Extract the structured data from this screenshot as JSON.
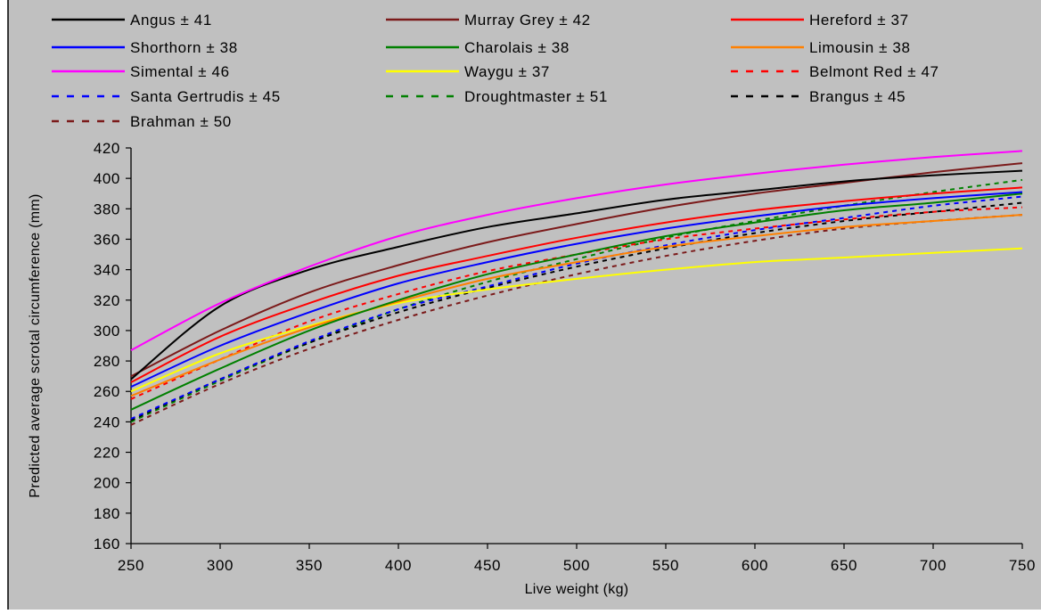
{
  "chart_data": {
    "type": "line",
    "title": "",
    "xlabel": "Live weight (kg)",
    "ylabel": "Predicted average scrotal circumference (mm)",
    "xlim": [
      250,
      750
    ],
    "ylim": [
      160,
      420
    ],
    "xticks": [
      250,
      300,
      350,
      400,
      450,
      500,
      550,
      600,
      650,
      700,
      750
    ],
    "yticks": [
      160,
      180,
      200,
      220,
      240,
      260,
      280,
      300,
      320,
      340,
      360,
      380,
      400,
      420
    ],
    "grid": false,
    "legend_position": "top",
    "x": [
      250,
      300,
      350,
      400,
      450,
      500,
      550,
      600,
      650,
      700,
      750
    ],
    "series": [
      {
        "name": "Angus ± 41",
        "color": "#000000",
        "dash": false,
        "values": [
          268,
          316,
          340,
          355,
          368,
          377,
          386,
          392,
          398,
          402,
          405
        ]
      },
      {
        "name": "Murray Grey ± 42",
        "color": "#7b1a1a",
        "dash": false,
        "values": [
          270,
          300,
          325,
          343,
          358,
          370,
          381,
          390,
          397,
          404,
          410
        ]
      },
      {
        "name": "Hereford ± 37",
        "color": "#ff0000",
        "dash": false,
        "values": [
          266,
          296,
          318,
          336,
          349,
          361,
          371,
          379,
          385,
          390,
          394
        ]
      },
      {
        "name": "Shorthorn ± 38",
        "color": "#0000ff",
        "dash": false,
        "values": [
          263,
          290,
          312,
          331,
          345,
          357,
          367,
          375,
          382,
          387,
          391
        ]
      },
      {
        "name": "Charolais ± 38",
        "color": "#008000",
        "dash": false,
        "values": [
          248,
          275,
          300,
          320,
          337,
          350,
          362,
          371,
          379,
          384,
          390
        ]
      },
      {
        "name": "Limousin ± 38",
        "color": "#ff8000",
        "dash": false,
        "values": [
          257,
          281,
          302,
          319,
          334,
          345,
          355,
          362,
          368,
          372,
          376
        ]
      },
      {
        "name": "Simental ± 46",
        "color": "#ff00ff",
        "dash": false,
        "values": [
          287,
          318,
          342,
          362,
          376,
          387,
          396,
          403,
          409,
          414,
          418
        ]
      },
      {
        "name": "Waygu ± 37",
        "color": "#ffff00",
        "dash": false,
        "values": [
          260,
          285,
          303,
          318,
          327,
          334,
          340,
          345,
          348,
          351,
          354
        ]
      },
      {
        "name": "Belmont Red ± 47",
        "color": "#ff0000",
        "dash": true,
        "values": [
          255,
          281,
          306,
          324,
          339,
          350,
          360,
          367,
          373,
          378,
          381
        ]
      },
      {
        "name": "Santa Gertrudis ± 45",
        "color": "#0000ff",
        "dash": true,
        "values": [
          242,
          268,
          293,
          314,
          329,
          344,
          356,
          366,
          374,
          382,
          388
        ]
      },
      {
        "name": "Droughtmaster ± 51",
        "color": "#008000",
        "dash": true,
        "values": [
          240,
          267,
          292,
          314,
          332,
          347,
          361,
          372,
          382,
          391,
          399
        ]
      },
      {
        "name": "Brangus ± 45",
        "color": "#000000",
        "dash": true,
        "values": [
          241,
          268,
          292,
          312,
          328,
          342,
          354,
          364,
          372,
          378,
          384
        ]
      },
      {
        "name": "Brahman ± 50",
        "color": "#7b1a1a",
        "dash": true,
        "values": [
          238,
          265,
          288,
          307,
          323,
          337,
          349,
          359,
          367,
          372,
          376
        ]
      }
    ]
  },
  "colors": {
    "plot_background": "#c0c0c0",
    "page_background": "#ffffff"
  }
}
